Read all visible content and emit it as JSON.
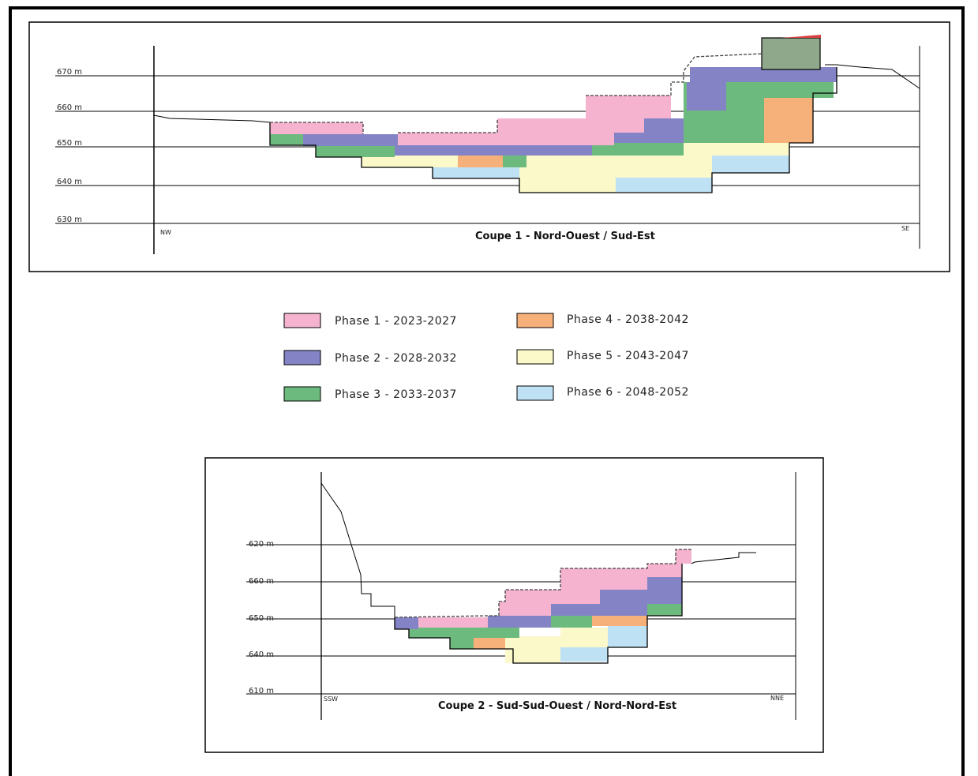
{
  "colors": {
    "phase1": "#f5b3cf",
    "phase2": "#8383c6",
    "phase3": "#6cba7e",
    "phase4": "#f6b07a",
    "phase5": "#fbf8c9",
    "phase6": "#bfe1f4",
    "roof_block": "#8fa88c",
    "roof_cap": "#d64040"
  },
  "section1": {
    "caption": "Coupe 1 -  Nord-Ouest / Sud-Est",
    "elevation_labels": [
      "670 m",
      "660 m",
      "650 m",
      "640 m",
      "630 m"
    ],
    "left_direction": "NW",
    "right_direction": "SE"
  },
  "section2": {
    "caption": "Coupe 2 -  Sud-Sud-Ouest / Nord-Nord-Est",
    "elevation_labels": [
      "620 m",
      "660 m",
      "650 m",
      "640 m",
      "610 m"
    ],
    "left_direction": "SSW",
    "right_direction": "NNE"
  },
  "legend": [
    {
      "label": "Phase 1 - 2023-2027",
      "color_key": "phase1"
    },
    {
      "label": "Phase 4 - 2038-2042",
      "color_key": "phase4"
    },
    {
      "label": "Phase 2 - 2028-2032",
      "color_key": "phase2"
    },
    {
      "label": "Phase 5 - 2043-2047",
      "color_key": "phase5"
    },
    {
      "label": "Phase 3 - 2033-2037",
      "color_key": "phase3"
    },
    {
      "label": "Phase 6 - 2048-2052",
      "color_key": "phase6"
    }
  ]
}
